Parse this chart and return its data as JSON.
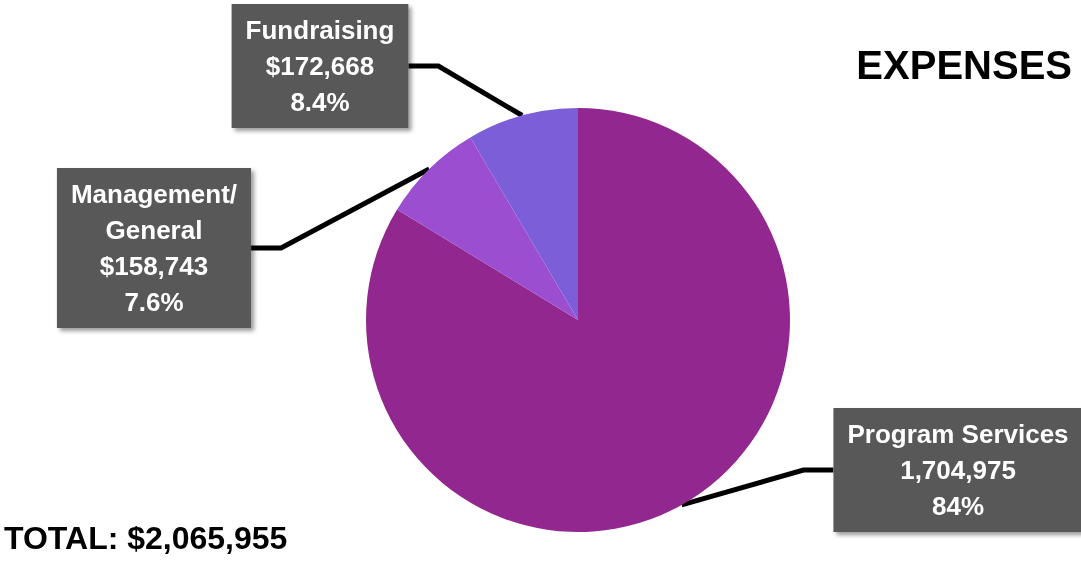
{
  "chart_data": {
    "type": "pie",
    "title": "EXPENSES",
    "categories": [
      "Program Services",
      "Management/General",
      "Fundraising"
    ],
    "values": [
      1704975,
      158743,
      172668
    ],
    "value_labels": [
      "1,704,975\n84%",
      "$158,743\n7.6%",
      "$172,668\n8.4%"
    ],
    "colors": [
      "#92278f",
      "#9b4fd0",
      "#7b5ed8"
    ],
    "annotations": [
      "TOTAL: $2,065,955"
    ],
    "legend": false
  }
}
